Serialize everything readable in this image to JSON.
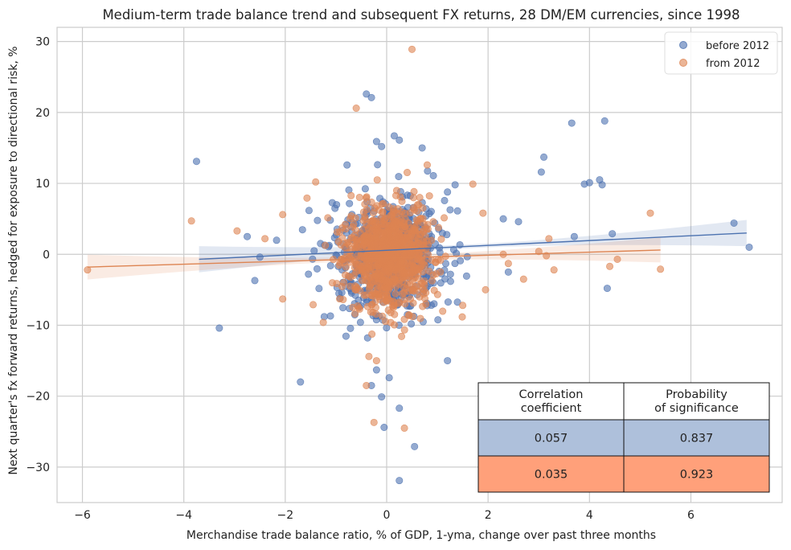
{
  "chart_data": {
    "type": "scatter",
    "title": "Medium-term trade balance trend and subsequent FX returns, 28 DM/EM currencies, since 1998",
    "xlabel": "Merchandise trade balance ratio, % of GDP, 1-yma, change over past three months",
    "ylabel": "Next quarter's fx forward returns, hedged for exposure to directional risk, %",
    "xlim": [
      -6.5,
      7.8
    ],
    "ylim": [
      -35,
      32
    ],
    "xticks": [
      -6,
      -4,
      -2,
      0,
      2,
      4,
      6
    ],
    "yticks": [
      -30,
      -20,
      -10,
      0,
      10,
      20,
      30
    ],
    "grid": true,
    "legend_position": "top-right",
    "series": [
      {
        "name": "before 2012",
        "color": "#4c72b0",
        "outliers": [
          [
            -3.75,
            13.1
          ],
          [
            -3.3,
            -10.4
          ],
          [
            -2.75,
            2.5
          ],
          [
            -2.5,
            -0.4
          ],
          [
            -2.6,
            -3.7
          ],
          [
            -1.7,
            -18.0
          ],
          [
            -0.4,
            22.6
          ],
          [
            -0.3,
            22.1
          ],
          [
            -0.2,
            15.9
          ],
          [
            -0.1,
            15.2
          ],
          [
            0.15,
            16.7
          ],
          [
            0.25,
            16.1
          ],
          [
            0.7,
            15.0
          ],
          [
            0.25,
            -21.7
          ],
          [
            0.55,
            -27.1
          ],
          [
            0.25,
            -31.9
          ],
          [
            -0.05,
            -24.4
          ],
          [
            -0.1,
            -20.1
          ],
          [
            0.05,
            -17.4
          ],
          [
            -0.2,
            -16.3
          ],
          [
            -0.3,
            -18.5
          ],
          [
            1.2,
            -15.0
          ],
          [
            1.35,
            9.8
          ],
          [
            2.3,
            5.0
          ],
          [
            3.05,
            11.6
          ],
          [
            3.1,
            13.7
          ],
          [
            3.65,
            18.5
          ],
          [
            4.3,
            18.8
          ],
          [
            3.9,
            9.9
          ],
          [
            4.0,
            10.1
          ],
          [
            4.2,
            10.5
          ],
          [
            4.25,
            9.8
          ],
          [
            4.45,
            2.9
          ],
          [
            4.35,
            -4.8
          ],
          [
            3.7,
            2.5
          ],
          [
            6.85,
            4.4
          ],
          [
            7.15,
            1.0
          ],
          [
            2.4,
            -2.5
          ],
          [
            2.6,
            4.6
          ]
        ],
        "regression": {
          "x": [
            -3.7,
            7.1
          ],
          "y": [
            -0.7,
            3.0
          ],
          "ci_halfwidth": 1.6
        }
      },
      {
        "name": "from 2012",
        "color": "#dd8452",
        "outliers": [
          [
            -5.9,
            -2.2
          ],
          [
            -3.85,
            4.7
          ],
          [
            -2.95,
            3.3
          ],
          [
            -2.4,
            2.2
          ],
          [
            -2.05,
            5.6
          ],
          [
            -2.05,
            -6.3
          ],
          [
            -1.4,
            10.2
          ],
          [
            -1.45,
            -7.1
          ],
          [
            -1.25,
            -9.6
          ],
          [
            -0.6,
            20.6
          ],
          [
            0.5,
            28.9
          ],
          [
            -0.35,
            -14.4
          ],
          [
            -0.2,
            -15.0
          ],
          [
            -0.4,
            -18.5
          ],
          [
            -0.25,
            -23.7
          ],
          [
            0.35,
            -24.5
          ],
          [
            1.7,
            9.9
          ],
          [
            1.9,
            5.8
          ],
          [
            1.95,
            -5.0
          ],
          [
            2.4,
            -1.3
          ],
          [
            2.7,
            -3.5
          ],
          [
            3.2,
            2.2
          ],
          [
            3.15,
            -0.2
          ],
          [
            3.0,
            0.4
          ],
          [
            3.3,
            -2.2
          ],
          [
            4.4,
            -1.7
          ],
          [
            4.55,
            -0.7
          ],
          [
            5.2,
            5.8
          ],
          [
            5.4,
            -2.1
          ],
          [
            2.3,
            0.0
          ],
          [
            1.5,
            -7.2
          ],
          [
            0.8,
            12.6
          ]
        ],
        "regression": {
          "x": [
            -5.9,
            5.4
          ],
          "y": [
            -1.8,
            0.6
          ],
          "ci_halfwidth": 1.5
        }
      }
    ],
    "cloud_note": "",
    "table": {
      "headers": [
        "Correlation\ncoefficient",
        "Probability\nof significance"
      ],
      "rows": [
        {
          "values": [
            "0.057",
            "0.837"
          ],
          "color": "#aec0db"
        },
        {
          "values": [
            "0.035",
            "0.923"
          ],
          "color": "#ffa07a"
        }
      ]
    }
  }
}
